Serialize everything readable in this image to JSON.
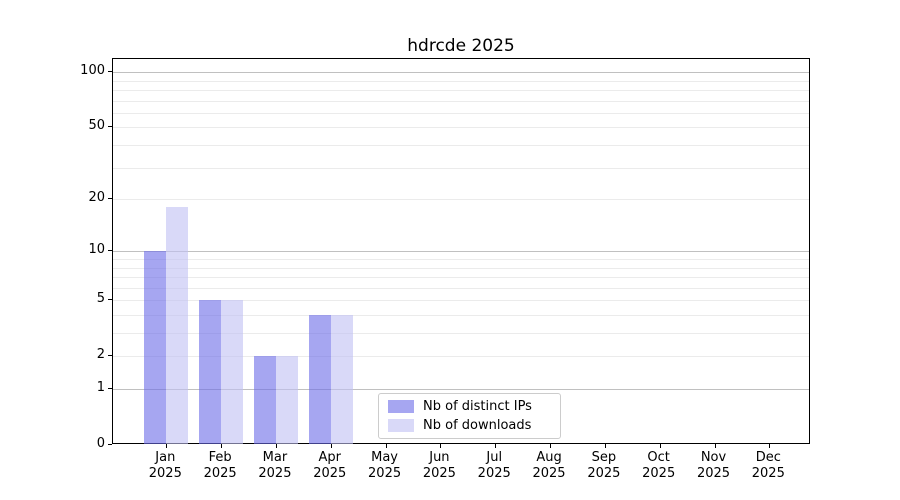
{
  "chart_data": {
    "type": "bar",
    "title": "hdrcde 2025",
    "x_months": [
      "Jan",
      "Feb",
      "Mar",
      "Apr",
      "May",
      "Jun",
      "Jul",
      "Aug",
      "Sep",
      "Oct",
      "Nov",
      "Dec"
    ],
    "x_year": "2025",
    "categories": [
      "Jan 2025",
      "Feb 2025",
      "Mar 2025",
      "Apr 2025",
      "May 2025",
      "Jun 2025",
      "Jul 2025",
      "Aug 2025",
      "Sep 2025",
      "Oct 2025",
      "Nov 2025",
      "Dec 2025"
    ],
    "series": [
      {
        "name": "Nb of distinct IPs",
        "color": "#a6a6f1",
        "values": [
          10,
          5,
          2,
          4,
          0,
          0,
          0,
          0,
          0,
          0,
          0,
          0
        ]
      },
      {
        "name": "Nb of downloads",
        "color": "#d9d9f8",
        "values": [
          18,
          5,
          2,
          4,
          0,
          0,
          0,
          0,
          0,
          0,
          0,
          0
        ]
      }
    ],
    "yscale": "log1p",
    "ylim": [
      0,
      118
    ],
    "y_tick_values": [
      0,
      1,
      2,
      5,
      10,
      20,
      50,
      100
    ],
    "y_tick_labels": [
      "0",
      "1",
      "2",
      "5",
      "10",
      "20",
      "50",
      "100"
    ],
    "grid": {
      "major_values": [
        1,
        10,
        100
      ],
      "minor_values": [
        2,
        3,
        4,
        5,
        6,
        7,
        8,
        9,
        20,
        30,
        40,
        50,
        60,
        70,
        80,
        90
      ],
      "major_color": "#c0c0c0",
      "minor_color": "#ebebeb"
    },
    "legend": {
      "position": "lower center",
      "entries": [
        "Nb of distinct IPs",
        "Nb of downloads"
      ]
    },
    "colors": {
      "spine": "#000000",
      "background": "#ffffff"
    }
  }
}
